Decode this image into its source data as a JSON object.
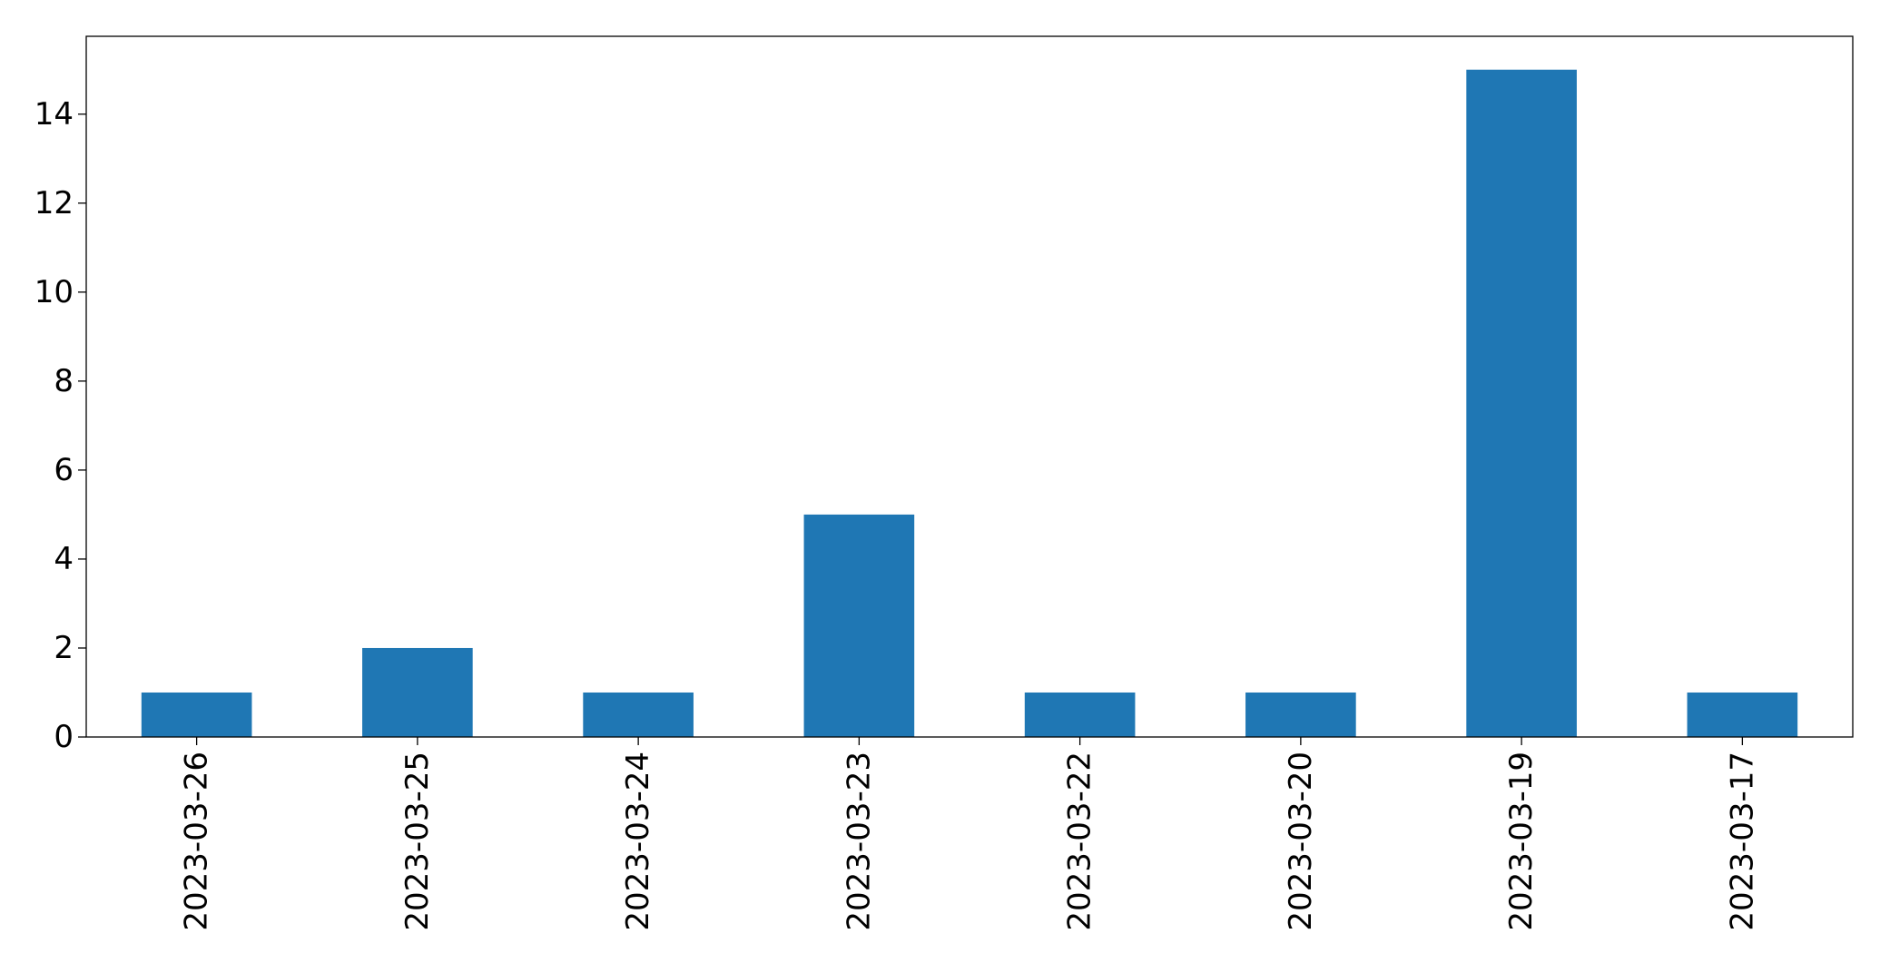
{
  "chart_data": {
    "type": "bar",
    "title": "",
    "xlabel": "",
    "ylabel": "",
    "categories": [
      "2023-03-26",
      "2023-03-25",
      "2023-03-24",
      "2023-03-23",
      "2023-03-22",
      "2023-03-20",
      "2023-03-19",
      "2023-03-17"
    ],
    "values": [
      1,
      2,
      1,
      5,
      1,
      1,
      15,
      1
    ],
    "ylim": [
      0,
      15.75
    ],
    "yticks": [
      0,
      2,
      4,
      6,
      8,
      10,
      12,
      14
    ],
    "grid": false,
    "legend": false,
    "bar_color": "#1f77b4"
  }
}
